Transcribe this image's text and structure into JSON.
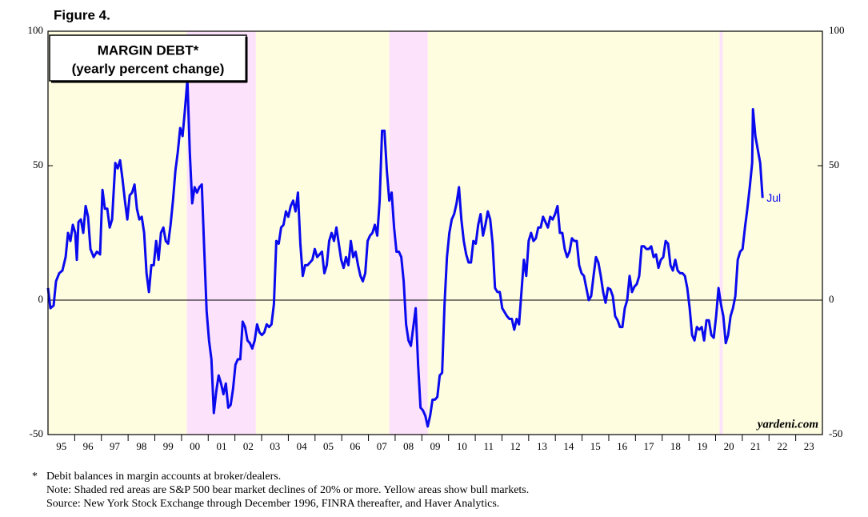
{
  "chart_data": {
    "type": "line",
    "figure_label": "Figure 4.",
    "title": "MARGIN DEBT*",
    "subtitle": "(yearly percent change)",
    "annotation": "Jul",
    "source_brand": "yardeni.com",
    "footnote_marker": "*",
    "notes": [
      "Debit balances in margin accounts at broker/dealers.",
      "Note: Shaded red areas are S&P 500 bear market declines of 20% or more. Yellow areas show bull markets.",
      "Source: New York Stock Exchange through December 1996, FINRA thereafter, and Haver Analytics."
    ],
    "color": "#0a0aee",
    "bull_color": "#fffde0",
    "bear_color": "#fde2fb",
    "bear_markets": [
      [
        2000.2,
        2002.78
      ],
      [
        2007.78,
        2009.22
      ],
      [
        2020.15,
        2020.27
      ]
    ],
    "xlim": [
      1995,
      2024
    ],
    "ylim": [
      -50,
      100
    ],
    "yticks": [
      100,
      50,
      0,
      -50
    ],
    "y2lim": [
      -50,
      100
    ],
    "y2ticks": [
      100,
      50,
      0,
      -50
    ],
    "hline": 0,
    "xminor": [
      1996,
      1997,
      1998,
      1999,
      2000,
      2001,
      2002,
      2003,
      2004,
      2005,
      2006,
      2007,
      2008,
      2009,
      2010,
      2011,
      2012,
      2013,
      2014,
      2015,
      2016,
      2017,
      2018,
      2019,
      2020,
      2021,
      2022,
      2023
    ],
    "xticks": [
      {
        "value": 1995.5,
        "label": "95"
      },
      {
        "value": 1996.5,
        "label": "96"
      },
      {
        "value": 1997.5,
        "label": "97"
      },
      {
        "value": 1998.5,
        "label": "98"
      },
      {
        "value": 1999.5,
        "label": "99"
      },
      {
        "value": 2000.5,
        "label": "00"
      },
      {
        "value": 2001.5,
        "label": "01"
      },
      {
        "value": 2002.5,
        "label": "02"
      },
      {
        "value": 2003.5,
        "label": "03"
      },
      {
        "value": 2004.5,
        "label": "04"
      },
      {
        "value": 2005.5,
        "label": "05"
      },
      {
        "value": 2006.5,
        "label": "06"
      },
      {
        "value": 2007.5,
        "label": "07"
      },
      {
        "value": 2008.5,
        "label": "08"
      },
      {
        "value": 2009.5,
        "label": "09"
      },
      {
        "value": 2010.5,
        "label": "10"
      },
      {
        "value": 2011.5,
        "label": "11"
      },
      {
        "value": 2012.5,
        "label": "12"
      },
      {
        "value": 2013.5,
        "label": "13"
      },
      {
        "value": 2014.5,
        "label": "14"
      },
      {
        "value": 2015.5,
        "label": "15"
      },
      {
        "value": 2016.5,
        "label": "16"
      },
      {
        "value": 2017.5,
        "label": "17"
      },
      {
        "value": 2018.5,
        "label": "18"
      },
      {
        "value": 2019.5,
        "label": "19"
      },
      {
        "value": 2020.5,
        "label": "20"
      },
      {
        "value": 2021.5,
        "label": "21"
      },
      {
        "value": 2022.5,
        "label": "22"
      },
      {
        "value": 2023.5,
        "label": "23"
      }
    ],
    "x": [
      1995.0,
      1995.09,
      1995.21,
      1995.3,
      1995.42,
      1995.54,
      1995.66,
      1995.75,
      1995.84,
      1995.93,
      1996.02,
      1996.08,
      1996.14,
      1996.23,
      1996.32,
      1996.41,
      1996.5,
      1996.59,
      1996.71,
      1996.83,
      1996.95,
      1997.04,
      1997.13,
      1997.22,
      1997.31,
      1997.4,
      1997.52,
      1997.61,
      1997.7,
      1997.79,
      1997.88,
      1997.97,
      1998.06,
      1998.15,
      1998.24,
      1998.33,
      1998.42,
      1998.51,
      1998.6,
      1998.69,
      1998.78,
      1998.87,
      1998.96,
      1999.05,
      1999.14,
      1999.23,
      1999.32,
      1999.41,
      1999.5,
      1999.59,
      1999.68,
      1999.77,
      1999.86,
      1999.95,
      2000.04,
      2000.13,
      2000.22,
      2000.31,
      2000.4,
      2000.49,
      2000.58,
      2000.67,
      2000.76,
      2000.85,
      2000.94,
      2001.03,
      2001.12,
      2001.21,
      2001.3,
      2001.39,
      2001.48,
      2001.57,
      2001.66,
      2001.75,
      2001.84,
      2001.93,
      2002.02,
      2002.11,
      2002.2,
      2002.29,
      2002.38,
      2002.47,
      2002.56,
      2002.65,
      2002.74,
      2002.83,
      2002.92,
      2003.01,
      2003.1,
      2003.19,
      2003.28,
      2003.37,
      2003.46,
      2003.55,
      2003.64,
      2003.73,
      2003.82,
      2003.91,
      2004.0,
      2004.09,
      2004.18,
      2004.27,
      2004.36,
      2004.45,
      2004.54,
      2004.63,
      2004.72,
      2004.81,
      2004.9,
      2004.99,
      2005.08,
      2005.17,
      2005.26,
      2005.35,
      2005.44,
      2005.53,
      2005.62,
      2005.71,
      2005.8,
      2005.89,
      2005.98,
      2006.07,
      2006.16,
      2006.25,
      2006.34,
      2006.43,
      2006.52,
      2006.61,
      2006.7,
      2006.79,
      2006.88,
      2006.97,
      2007.06,
      2007.15,
      2007.24,
      2007.33,
      2007.42,
      2007.51,
      2007.6,
      2007.69,
      2007.78,
      2007.87,
      2007.96,
      2008.05,
      2008.14,
      2008.23,
      2008.32,
      2008.41,
      2008.5,
      2008.59,
      2008.68,
      2008.77,
      2008.86,
      2008.95,
      2009.04,
      2009.13,
      2009.22,
      2009.31,
      2009.4,
      2009.49,
      2009.58,
      2009.67,
      2009.76,
      2009.85,
      2009.94,
      2010.03,
      2010.12,
      2010.21,
      2010.3,
      2010.39,
      2010.48,
      2010.57,
      2010.66,
      2010.75,
      2010.84,
      2010.93,
      2011.02,
      2011.11,
      2011.2,
      2011.29,
      2011.38,
      2011.47,
      2011.56,
      2011.65,
      2011.74,
      2011.83,
      2011.92,
      2012.01,
      2012.1,
      2012.19,
      2012.28,
      2012.37,
      2012.46,
      2012.55,
      2012.64,
      2012.73,
      2012.82,
      2012.91,
      2013.0,
      2013.09,
      2013.18,
      2013.27,
      2013.36,
      2013.45,
      2013.54,
      2013.63,
      2013.72,
      2013.81,
      2013.9,
      2013.99,
      2014.08,
      2014.17,
      2014.26,
      2014.35,
      2014.44,
      2014.53,
      2014.62,
      2014.71,
      2014.8,
      2014.89,
      2014.98,
      2015.07,
      2015.16,
      2015.25,
      2015.34,
      2015.43,
      2015.52,
      2015.61,
      2015.7,
      2015.79,
      2015.88,
      2015.97,
      2016.06,
      2016.15,
      2016.24,
      2016.33,
      2016.42,
      2016.51,
      2016.6,
      2016.69,
      2016.78,
      2016.87,
      2016.96,
      2017.05,
      2017.14,
      2017.23,
      2017.32,
      2017.41,
      2017.5,
      2017.59,
      2017.68,
      2017.77,
      2017.86,
      2017.95,
      2018.04,
      2018.13,
      2018.22,
      2018.31,
      2018.4,
      2018.49,
      2018.58,
      2018.67,
      2018.76,
      2018.85,
      2018.94,
      2019.03,
      2019.12,
      2019.21,
      2019.3,
      2019.39,
      2019.48,
      2019.57,
      2019.66,
      2019.75,
      2019.84,
      2019.93,
      2020.02,
      2020.11,
      2020.2,
      2020.29,
      2020.38,
      2020.47,
      2020.56,
      2020.65,
      2020.74,
      2020.83,
      2020.92,
      2021.01,
      2021.1,
      2021.19,
      2021.28,
      2021.37,
      2021.4,
      2021.49,
      2021.58,
      2021.67,
      2021.76
    ],
    "values": [
      4.5,
      -3,
      -2,
      7,
      10,
      11,
      16,
      25,
      22,
      28,
      25,
      15,
      29,
      30,
      25,
      35,
      31,
      19,
      16,
      18,
      17,
      41,
      34,
      34,
      27,
      30,
      51,
      49,
      52,
      45,
      37,
      30,
      39,
      40,
      43,
      34,
      30,
      31,
      25,
      10,
      3,
      13,
      13,
      22,
      15,
      25,
      27,
      22,
      21,
      28,
      37,
      48,
      55,
      64,
      61,
      71,
      82,
      55,
      36,
      42,
      40,
      42,
      43,
      19,
      -4,
      -15,
      -22,
      -42,
      -34,
      -28,
      -31,
      -35,
      -31,
      -40,
      -39,
      -33,
      -24,
      -22,
      -22,
      -8,
      -10,
      -15,
      -16,
      -18,
      -15,
      -9,
      -12,
      -13,
      -12,
      -9,
      -10,
      -9,
      -1.5,
      22,
      21,
      27,
      28,
      33,
      31,
      35,
      37,
      33,
      40,
      21,
      9,
      13,
      13,
      14,
      15,
      19,
      16,
      17,
      18,
      10,
      13,
      22,
      25,
      22,
      27,
      21,
      15,
      12,
      16,
      13,
      22,
      16,
      18,
      13,
      9,
      7,
      10,
      22,
      24,
      25,
      28,
      24,
      37,
      63,
      63,
      48,
      37,
      40,
      27,
      18,
      18,
      16,
      7,
      -9,
      -15,
      -17,
      -10,
      -3,
      -24,
      -40,
      -41,
      -43,
      -47,
      -43,
      -37,
      -37,
      -36,
      -28,
      -27,
      -1.5,
      16,
      25,
      30,
      32,
      36,
      42,
      30,
      22,
      17,
      14,
      14,
      22,
      21,
      28,
      32,
      24,
      28,
      33,
      30,
      21,
      4.5,
      3,
      3,
      -3,
      -4.5,
      -6,
      -7,
      -7,
      -11,
      -7,
      -9,
      3,
      15,
      9,
      22,
      25,
      22,
      23,
      27,
      27,
      31,
      29,
      27,
      31,
      30,
      32,
      35,
      25,
      25,
      19,
      16,
      18,
      23,
      22,
      22,
      13,
      10,
      9,
      4.5,
      0,
      1.5,
      9,
      16,
      14,
      9,
      3,
      -1,
      4.5,
      4,
      1.5,
      -6,
      -7.5,
      -10,
      -10,
      -3,
      0,
      9,
      3,
      5,
      6,
      9,
      20,
      20,
      19,
      19,
      20,
      16,
      17,
      12,
      15,
      16,
      22,
      21,
      13,
      11,
      15,
      11,
      10,
      10,
      9,
      4.5,
      -3,
      -13,
      -15,
      -10,
      -11,
      -10,
      -15,
      -7.5,
      -7.5,
      -13,
      -14,
      -6,
      4.5,
      -1.5,
      -6,
      -16,
      -13,
      -6,
      -3,
      1.5,
      15,
      18,
      19,
      27,
      34,
      42,
      51,
      71,
      61,
      56,
      51,
      38
    ]
  }
}
